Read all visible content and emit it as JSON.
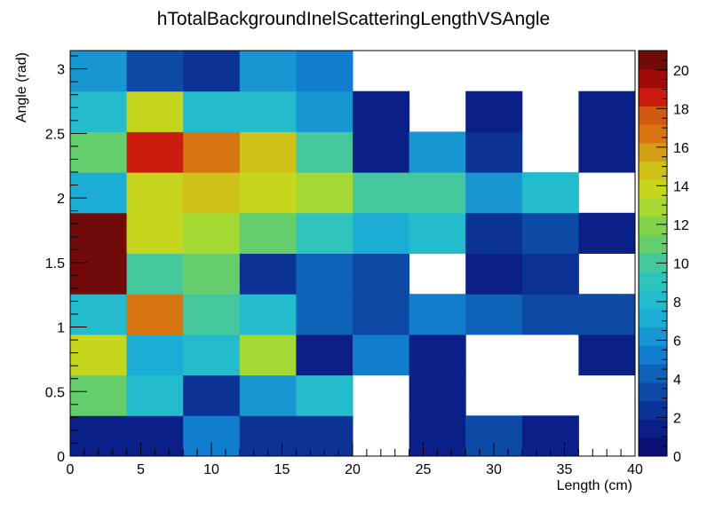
{
  "chart_data": {
    "type": "heatmap",
    "title": "hTotalBackgroundInelScatteringLengthVSAngle",
    "xlabel": "Length (cm)",
    "ylabel": "Angle (rad)",
    "xlim": [
      0,
      40
    ],
    "ylim": [
      0,
      3.14159
    ],
    "zlim": [
      0,
      21
    ],
    "x_bin_edges": [
      0,
      4,
      8,
      12,
      16,
      20,
      24,
      28,
      32,
      36,
      40
    ],
    "y_bin_edges": [
      0,
      0.314159,
      0.628318,
      0.942477,
      1.256636,
      1.570795,
      1.884954,
      2.199113,
      2.513272,
      2.827431,
      3.14159
    ],
    "x_ticks": [
      0,
      5,
      10,
      15,
      20,
      25,
      30,
      35,
      40
    ],
    "x_tick_labels": [
      "0",
      "5",
      "10",
      "15",
      "20",
      "25",
      "30",
      "35",
      "40"
    ],
    "y_ticks": [
      0,
      0.5,
      1,
      1.5,
      2,
      2.5,
      3
    ],
    "y_tick_labels": [
      "0",
      "0.5",
      "1",
      "1.5",
      "2",
      "2.5",
      "3"
    ],
    "z_ticks": [
      0,
      2,
      4,
      6,
      8,
      10,
      12,
      14,
      16,
      18,
      20
    ],
    "z_tick_labels": [
      "0",
      "2",
      "4",
      "6",
      "8",
      "10",
      "12",
      "14",
      "16",
      "18",
      "20"
    ],
    "palette": [
      "#0b1073",
      "#0a1f87",
      "#0b3396",
      "#0c4aa6",
      "#0e62b8",
      "#107dcf",
      "#1896d1",
      "#1cadd4",
      "#22bccd",
      "#2ec3bb",
      "#45c89e",
      "#64cd6c",
      "#82d34a",
      "#a3d932",
      "#c6d61e",
      "#cfc119",
      "#d39d14",
      "#d67512",
      "#d05a10",
      "#c91b0e",
      "#9e0b09",
      "#710b09"
    ],
    "values": [
      [
        1,
        1,
        5,
        2,
        2,
        0,
        1,
        3,
        1,
        0
      ],
      [
        11,
        8,
        2,
        6,
        8,
        0,
        1,
        0,
        0,
        0
      ],
      [
        14,
        7,
        8,
        13,
        1,
        5,
        1,
        0,
        0,
        1
      ],
      [
        8,
        17,
        10,
        8,
        4,
        3,
        5,
        4,
        3,
        3
      ],
      [
        21,
        10,
        11,
        2,
        4,
        3,
        0,
        1,
        2,
        0
      ],
      [
        21,
        14,
        13,
        11,
        9,
        7,
        8,
        2,
        3,
        1
      ],
      [
        7,
        14,
        15,
        14,
        13,
        10,
        10,
        6,
        8,
        0
      ],
      [
        11,
        19,
        17,
        15,
        10,
        1,
        6,
        2,
        0,
        1
      ],
      [
        8,
        14,
        8,
        8,
        6,
        1,
        0,
        1,
        0,
        1
      ],
      [
        6,
        3,
        2,
        6,
        5,
        0,
        0,
        0,
        0,
        0
      ]
    ]
  }
}
